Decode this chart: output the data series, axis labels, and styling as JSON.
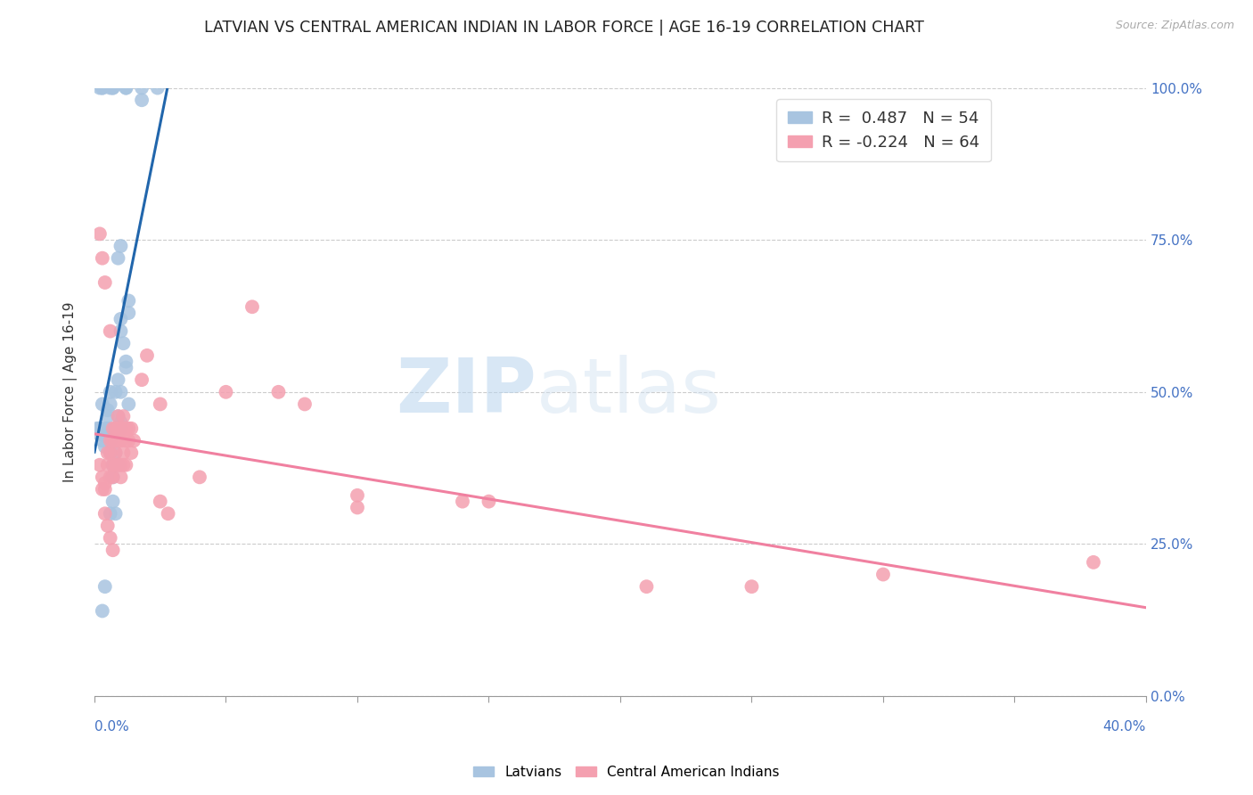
{
  "title": "LATVIAN VS CENTRAL AMERICAN INDIAN IN LABOR FORCE | AGE 16-19 CORRELATION CHART",
  "source": "Source: ZipAtlas.com",
  "ylabel": "In Labor Force | Age 16-19",
  "right_yticks": [
    "0.0%",
    "25.0%",
    "50.0%",
    "75.0%",
    "100.0%"
  ],
  "right_ytick_vals": [
    0,
    25,
    50,
    75,
    100
  ],
  "xmin": 0,
  "xmax": 40,
  "ymin": 0,
  "ymax": 100,
  "latvian_R": 0.487,
  "latvian_N": 54,
  "central_american_R": -0.224,
  "central_american_N": 64,
  "latvian_color": "#a8c4e0",
  "central_american_color": "#f4a0b0",
  "latvian_line_color": "#2166ac",
  "central_american_line_color": "#f080a0",
  "watermark_zip": "ZIP",
  "watermark_atlas": "atlas",
  "latvians_label": "Latvians",
  "central_label": "Central American Indians",
  "latvian_scatter": [
    [
      0.5,
      44
    ],
    [
      0.7,
      43
    ],
    [
      0.6,
      42
    ],
    [
      0.8,
      44
    ],
    [
      0.6,
      40
    ],
    [
      0.7,
      38
    ],
    [
      0.9,
      46
    ],
    [
      1.0,
      45
    ],
    [
      1.0,
      44
    ],
    [
      0.8,
      40
    ],
    [
      0.9,
      38
    ],
    [
      0.7,
      36
    ],
    [
      0.6,
      48
    ],
    [
      0.8,
      50
    ],
    [
      0.9,
      52
    ],
    [
      1.0,
      50
    ],
    [
      1.2,
      55
    ],
    [
      1.2,
      54
    ],
    [
      1.0,
      60
    ],
    [
      1.0,
      62
    ],
    [
      1.1,
      58
    ],
    [
      1.3,
      65
    ],
    [
      1.3,
      63
    ],
    [
      0.6,
      30
    ],
    [
      0.4,
      18
    ],
    [
      0.3,
      48
    ],
    [
      0.2,
      44
    ],
    [
      0.3,
      42
    ],
    [
      0.4,
      44
    ],
    [
      0.3,
      43
    ],
    [
      0.4,
      41
    ],
    [
      0.5,
      47
    ],
    [
      0.5,
      46
    ],
    [
      0.6,
      50
    ],
    [
      0.2,
      100
    ],
    [
      0.3,
      100
    ],
    [
      0.3,
      100
    ],
    [
      0.6,
      100
    ],
    [
      0.7,
      100
    ],
    [
      0.7,
      100
    ],
    [
      1.2,
      100
    ],
    [
      1.2,
      100
    ],
    [
      1.8,
      100
    ],
    [
      2.4,
      100
    ],
    [
      0.9,
      72
    ],
    [
      1.0,
      74
    ],
    [
      0.8,
      30
    ],
    [
      0.7,
      32
    ],
    [
      0.3,
      14
    ],
    [
      0.2,
      44
    ],
    [
      0.2,
      43
    ],
    [
      0.1,
      44
    ],
    [
      1.8,
      98
    ],
    [
      1.3,
      48
    ]
  ],
  "central_scatter": [
    [
      0.3,
      36
    ],
    [
      0.4,
      35
    ],
    [
      0.4,
      34
    ],
    [
      0.5,
      40
    ],
    [
      0.5,
      38
    ],
    [
      0.6,
      42
    ],
    [
      0.6,
      40
    ],
    [
      0.6,
      36
    ],
    [
      0.7,
      44
    ],
    [
      0.7,
      42
    ],
    [
      0.7,
      38
    ],
    [
      0.7,
      36
    ],
    [
      0.8,
      44
    ],
    [
      0.8,
      42
    ],
    [
      0.8,
      40
    ],
    [
      0.8,
      38
    ],
    [
      0.9,
      46
    ],
    [
      0.9,
      44
    ],
    [
      0.9,
      42
    ],
    [
      0.9,
      38
    ],
    [
      1.0,
      44
    ],
    [
      1.0,
      42
    ],
    [
      1.0,
      38
    ],
    [
      1.0,
      36
    ],
    [
      1.1,
      46
    ],
    [
      1.1,
      44
    ],
    [
      1.1,
      40
    ],
    [
      1.1,
      38
    ],
    [
      1.2,
      44
    ],
    [
      1.2,
      42
    ],
    [
      1.2,
      38
    ],
    [
      1.3,
      44
    ],
    [
      1.3,
      42
    ],
    [
      1.4,
      44
    ],
    [
      1.4,
      40
    ],
    [
      1.5,
      42
    ],
    [
      0.2,
      38
    ],
    [
      0.3,
      34
    ],
    [
      0.4,
      30
    ],
    [
      0.5,
      28
    ],
    [
      0.6,
      26
    ],
    [
      0.7,
      24
    ],
    [
      0.2,
      76
    ],
    [
      0.3,
      72
    ],
    [
      0.4,
      68
    ],
    [
      0.6,
      60
    ],
    [
      2.0,
      56
    ],
    [
      1.8,
      52
    ],
    [
      2.5,
      48
    ],
    [
      2.8,
      30
    ],
    [
      2.5,
      32
    ],
    [
      4.0,
      36
    ],
    [
      5.0,
      50
    ],
    [
      6.0,
      64
    ],
    [
      7.0,
      50
    ],
    [
      8.0,
      48
    ],
    [
      10.0,
      33
    ],
    [
      10.0,
      31
    ],
    [
      14.0,
      32
    ],
    [
      15.0,
      32
    ],
    [
      21.0,
      18
    ],
    [
      25.0,
      18
    ],
    [
      30.0,
      20
    ],
    [
      38.0,
      22
    ]
  ]
}
